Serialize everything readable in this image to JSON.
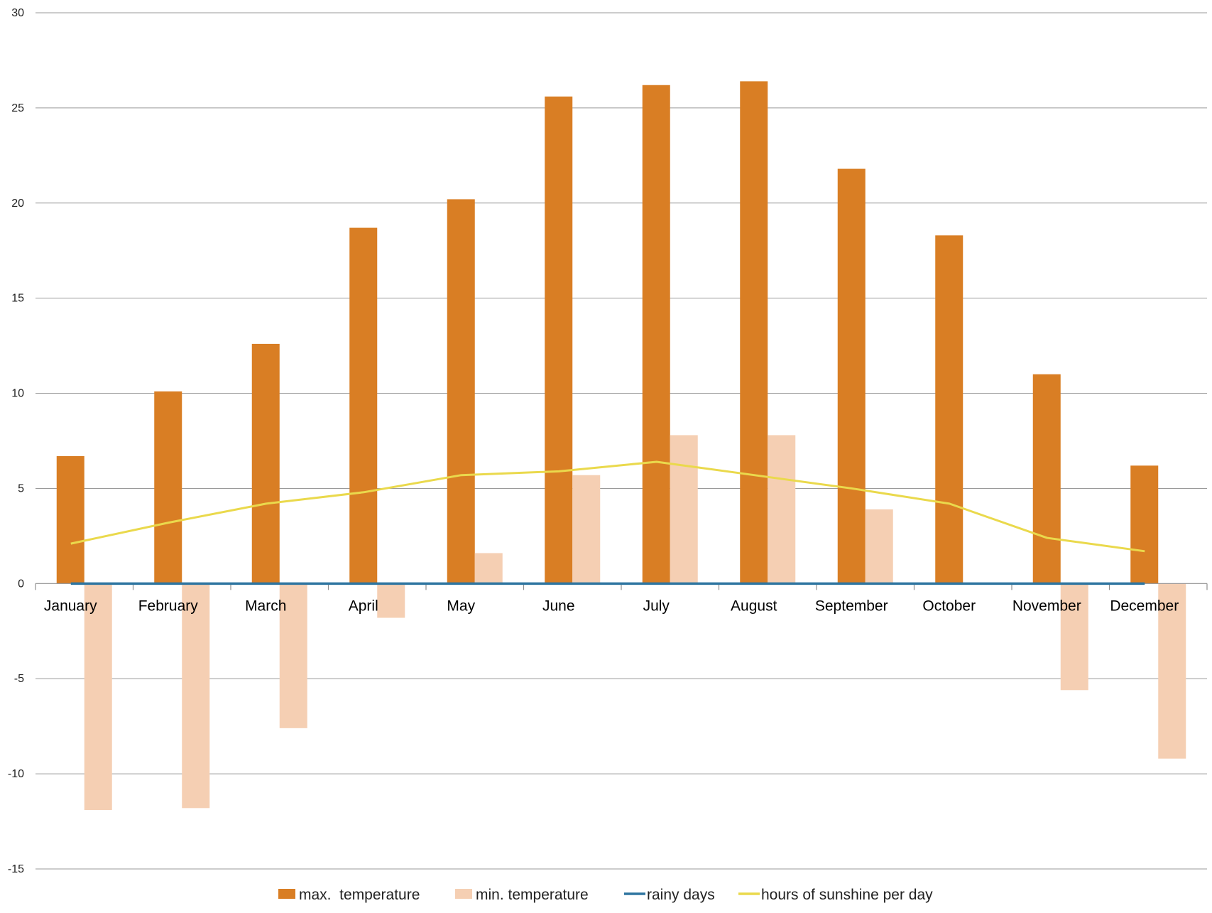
{
  "chart_data": {
    "type": "bar",
    "categories": [
      "January",
      "February",
      "March",
      "April",
      "May",
      "June",
      "July",
      "August",
      "September",
      "October",
      "November",
      "December"
    ],
    "series": [
      {
        "name": "max.  temperature",
        "type": "bar",
        "color": "#D97E24",
        "values": [
          6.7,
          10.1,
          12.6,
          18.7,
          20.2,
          25.6,
          26.2,
          26.4,
          21.8,
          18.3,
          11.0,
          6.2
        ]
      },
      {
        "name": "min. temperature",
        "type": "bar",
        "color": "#F5CFB3",
        "values": [
          -11.9,
          -11.8,
          -7.6,
          -1.8,
          1.6,
          5.7,
          7.8,
          7.8,
          3.9,
          0,
          -5.6,
          -9.2
        ]
      },
      {
        "name": "rainy days",
        "type": "line",
        "color": "#2E75A0",
        "values": [
          0,
          0,
          0,
          0,
          0,
          0,
          0,
          0,
          0,
          0,
          0,
          0
        ]
      },
      {
        "name": "hours of sunshine per day",
        "type": "line",
        "color": "#EAD94C",
        "values": [
          2.1,
          3.2,
          4.2,
          4.8,
          5.7,
          5.9,
          6.4,
          5.7,
          5.0,
          4.2,
          2.4,
          1.7
        ]
      }
    ],
    "ylim": [
      -15,
      30
    ],
    "yticks": [
      "30",
      "25",
      "20",
      "15",
      "10",
      "5",
      "0",
      "-5",
      "-10",
      "-15"
    ],
    "grid": true,
    "legend_position": "bottom"
  }
}
